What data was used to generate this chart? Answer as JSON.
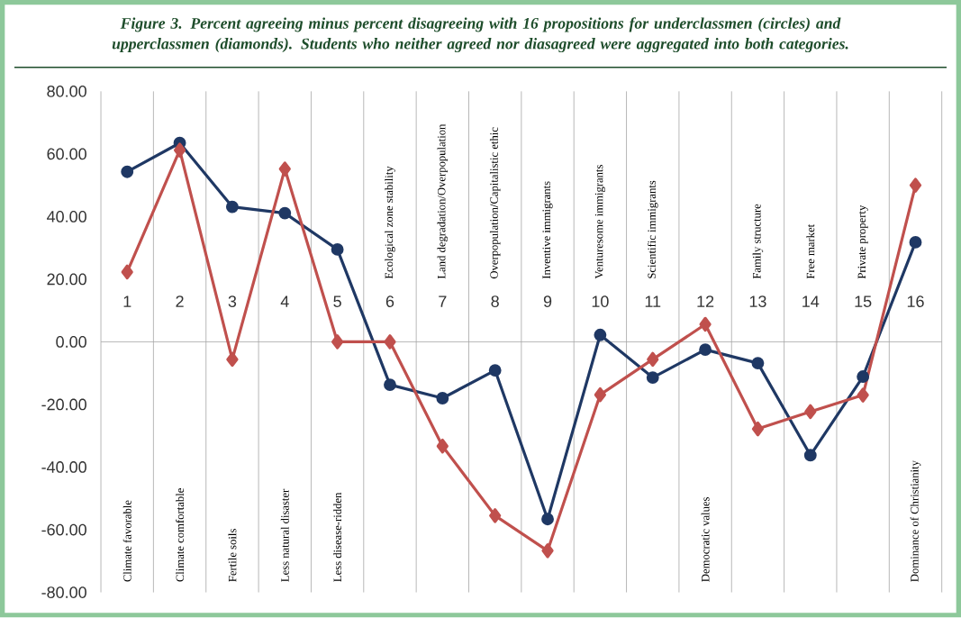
{
  "chart_data": {
    "type": "line",
    "title": "Figure 3. Percent agreeing minus percent disagreeing with 16 propositions for underclassmen (circles) and upperclassmen (diamonds). Students who neither agreed nor diasagreed were aggregated into both categories.",
    "categories": [
      "1",
      "2",
      "3",
      "4",
      "5",
      "6",
      "7",
      "8",
      "9",
      "10",
      "11",
      "12",
      "13",
      "14",
      "15",
      "16"
    ],
    "series": [
      {
        "color": "#1f3864",
        "marker": "circle",
        "values": [
          54.3,
          63.5,
          43.1,
          41.1,
          29.5,
          -13.7,
          -18.0,
          -9.1,
          -56.6,
          2.2,
          -11.4,
          -2.5,
          -6.8,
          -36.2,
          -11.1,
          31.8
        ]
      },
      {
        "color": "#c0504d",
        "marker": "diamond",
        "values": [
          22.3,
          61.2,
          -5.6,
          55.2,
          0,
          0,
          -33.3,
          -55.5,
          -66.7,
          -16.9,
          -5.6,
          5.6,
          -27.8,
          -22.3,
          -17.0,
          50.0
        ]
      }
    ],
    "annotations": [
      "Climate favorable",
      "Climate comfortable",
      "Fertile soils",
      "Less natural disaster",
      "Less disease-ridden",
      "Ecological zone stability",
      "Land degradation/Overpopulation",
      "Overpopulation/Capitalistic ethic",
      "Inventive immigrants",
      "Venturesome immigrants",
      "Scientific immigrants",
      "Democratic values",
      "Family structure",
      "Free market",
      "Private property",
      "Dominance of Christianity"
    ],
    "ylim": [
      -80,
      80
    ],
    "yticks": [
      {
        "value": -80,
        "label": "-80.00"
      },
      {
        "value": -60,
        "label": "-60.00"
      },
      {
        "value": -40,
        "label": "-40.00"
      },
      {
        "value": -20,
        "label": "-20.00"
      },
      {
        "value": 0,
        "label": "0.00"
      },
      {
        "value": 20,
        "label": "20.00"
      },
      {
        "value": 40,
        "label": "40.00"
      },
      {
        "value": 60,
        "label": "60.00"
      },
      {
        "value": 80,
        "label": "80.00"
      }
    ],
    "grid": "x"
  }
}
